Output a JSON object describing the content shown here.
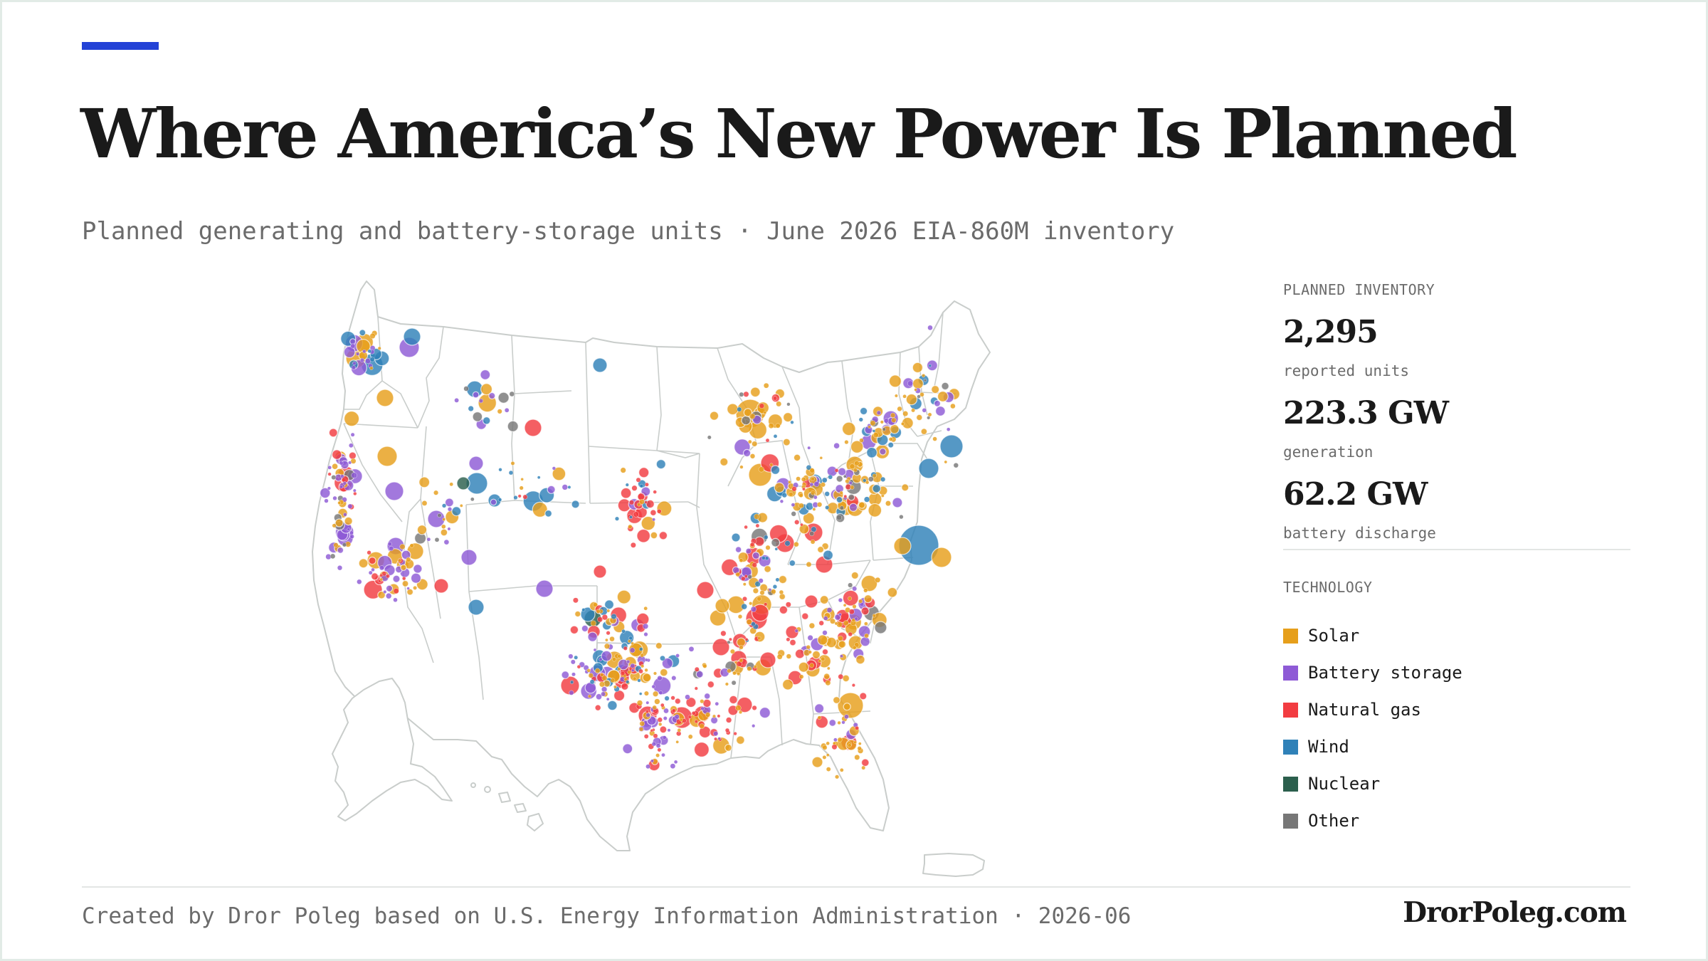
{
  "header": {
    "title": "Where America’s New Power Is Planned",
    "subtitle": "Planned generating and battery-storage units · June 2026 EIA-860M inventory"
  },
  "colors": {
    "accent": "#2342d6",
    "solar": "#e69f1b",
    "battery_storage": "#8e5ad6",
    "natural_gas": "#f23c41",
    "wind": "#2f81b8",
    "nuclear": "#2b5f4d",
    "other": "#777777",
    "map_stroke": "#c9cdcb"
  },
  "summary": {
    "heading": "PLANNED INVENTORY",
    "stats": [
      {
        "value": "2,295",
        "label": "reported units"
      },
      {
        "value": "223.3 GW",
        "label": "generation"
      },
      {
        "value": "62.2 GW",
        "label": "battery discharge"
      }
    ]
  },
  "legend": {
    "heading": "TECHNOLOGY",
    "items": [
      {
        "label": "Solar",
        "key": "solar"
      },
      {
        "label": "Battery storage",
        "key": "battery_storage"
      },
      {
        "label": "Natural gas",
        "key": "natural_gas"
      },
      {
        "label": "Wind",
        "key": "wind"
      },
      {
        "label": "Nuclear",
        "key": "nuclear"
      },
      {
        "label": "Other",
        "key": "other"
      }
    ]
  },
  "footer": {
    "credit": "Created by Dror Poleg based on U.S. Energy Information Administration · 2026-06",
    "brand": "DrorPoleg.com"
  }
}
